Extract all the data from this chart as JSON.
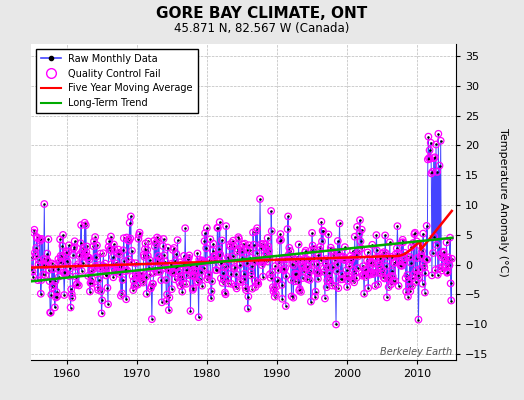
{
  "title": "GORE BAY CLIMATE, ONT",
  "subtitle": "45.871 N, 82.567 W (Canada)",
  "ylabel": "Temperature Anomaly (°C)",
  "watermark": "Berkeley Earth",
  "year_start": 1955,
  "year_end": 2015.5,
  "ylim": [
    -16,
    37
  ],
  "yticks": [
    -15,
    -10,
    -5,
    0,
    5,
    10,
    15,
    20,
    25,
    30,
    35
  ],
  "xticks": [
    1960,
    1970,
    1980,
    1990,
    2000,
    2010
  ],
  "bg_color": "#e8e8e8",
  "plot_bg_color": "#ffffff",
  "raw_color": "#4444ff",
  "qc_color": "#ff00ff",
  "ma_color": "#ff0000",
  "trend_color": "#00aa00",
  "legend_entries": [
    "Raw Monthly Data",
    "Quality Control Fail",
    "Five Year Moving Average",
    "Long-Term Trend"
  ]
}
